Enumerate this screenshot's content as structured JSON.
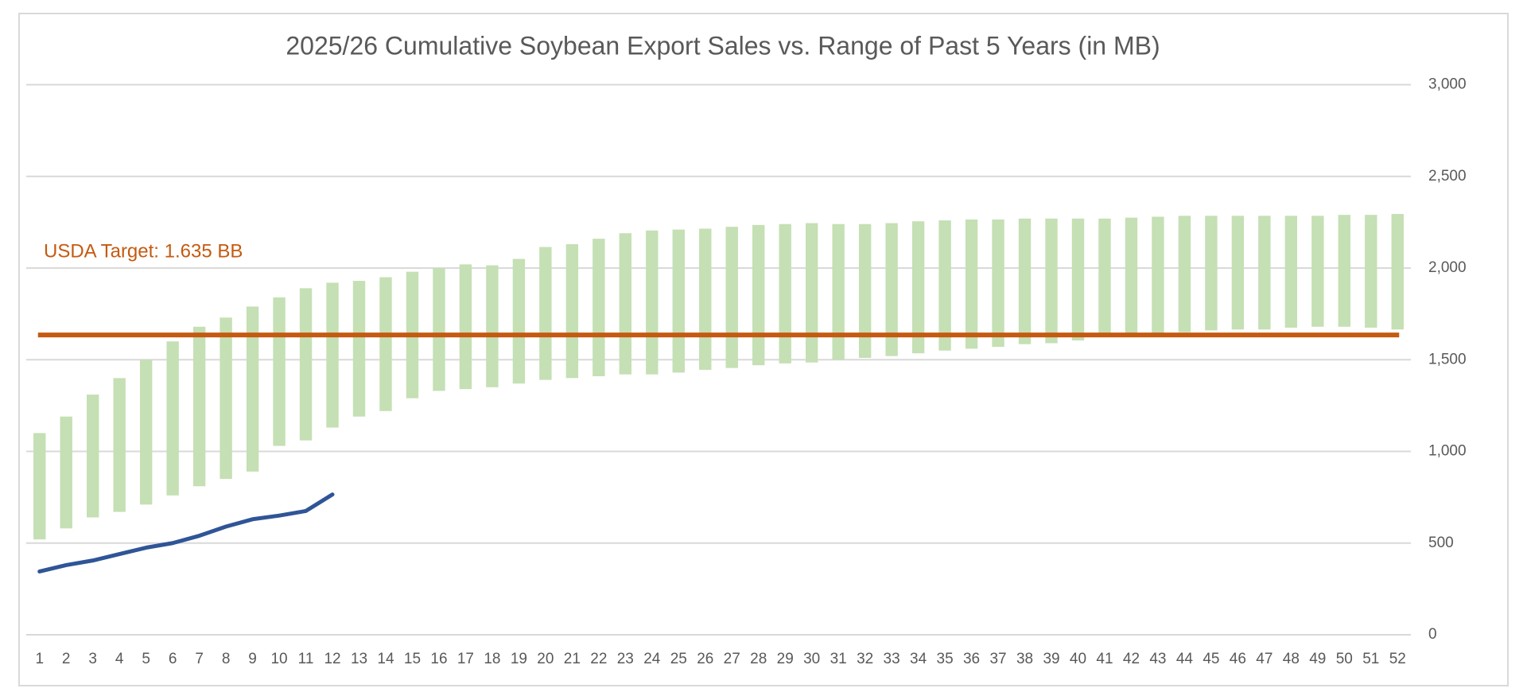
{
  "chart_data": {
    "type": "range_bar",
    "title": "2025/26 Cumulative Soybean Export Sales vs. Range of Past 5 Years (in MB)",
    "annotation": "USDA Target: 1.635 BB",
    "categories": [
      1,
      2,
      3,
      4,
      5,
      6,
      7,
      8,
      9,
      10,
      11,
      12,
      13,
      14,
      15,
      16,
      17,
      18,
      19,
      20,
      21,
      22,
      23,
      24,
      25,
      26,
      27,
      28,
      29,
      30,
      31,
      32,
      33,
      34,
      35,
      36,
      37,
      38,
      39,
      40,
      41,
      42,
      43,
      44,
      45,
      46,
      47,
      48,
      49,
      50,
      51,
      52
    ],
    "range": {
      "color": "#c5e0b4",
      "low": [
        520,
        580,
        640,
        670,
        710,
        760,
        810,
        850,
        890,
        1030,
        1060,
        1130,
        1190,
        1220,
        1290,
        1330,
        1340,
        1350,
        1370,
        1390,
        1400,
        1410,
        1420,
        1420,
        1430,
        1445,
        1455,
        1470,
        1480,
        1485,
        1500,
        1510,
        1520,
        1535,
        1550,
        1560,
        1570,
        1585,
        1590,
        1605,
        1625,
        1640,
        1645,
        1650,
        1660,
        1665,
        1665,
        1675,
        1680,
        1680,
        1675,
        1665
      ],
      "high": [
        1100,
        1190,
        1310,
        1400,
        1500,
        1600,
        1680,
        1730,
        1790,
        1840,
        1890,
        1920,
        1930,
        1950,
        1980,
        2000,
        2020,
        2015,
        2050,
        2115,
        2130,
        2160,
        2190,
        2205,
        2210,
        2215,
        2225,
        2235,
        2240,
        2245,
        2240,
        2240,
        2245,
        2255,
        2260,
        2265,
        2265,
        2270,
        2270,
        2270,
        2270,
        2275,
        2280,
        2285,
        2285,
        2285,
        2285,
        2285,
        2285,
        2290,
        2290,
        2295
      ]
    },
    "line": {
      "color": "#2f5597",
      "values": [
        345,
        380,
        405,
        440,
        475,
        500,
        540,
        590,
        630,
        650,
        675,
        765,
        null,
        null,
        null,
        null,
        null,
        null,
        null,
        null,
        null,
        null,
        null,
        null,
        null,
        null,
        null,
        null,
        null,
        null,
        null,
        null,
        null,
        null,
        null,
        null,
        null,
        null,
        null,
        null,
        null,
        null,
        null,
        null,
        null,
        null,
        null,
        null,
        null,
        null,
        null,
        null
      ]
    },
    "target": {
      "value": 1635,
      "color": "#c55a11"
    },
    "ylim": [
      0,
      3000
    ],
    "yticks": [
      0,
      500,
      {
        "value": 1000,
        "label": "1,000"
      },
      {
        "value": 1500,
        "label": "1,500"
      },
      {
        "value": 2000,
        "label": "2,000"
      },
      {
        "value": 2500,
        "label": "2,500"
      },
      {
        "value": 3000,
        "label": "3,000"
      }
    ],
    "grid": true,
    "y_axis_side": "right"
  }
}
